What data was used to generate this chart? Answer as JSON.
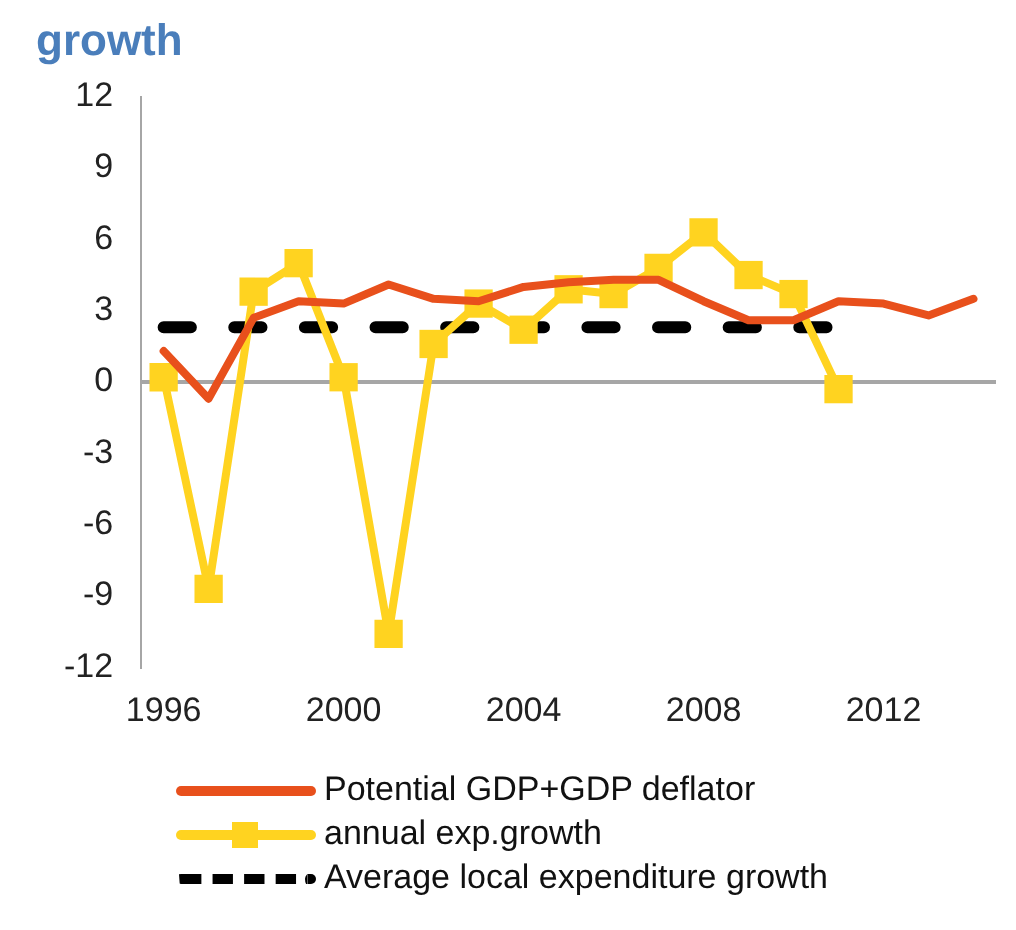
{
  "chart_data": {
    "type": "line",
    "title": "growth",
    "categories": [
      "1996",
      null,
      null,
      null,
      "2000",
      null,
      null,
      null,
      "2004",
      null,
      null,
      null,
      "2008",
      null,
      null,
      null,
      "2012",
      null,
      null
    ],
    "series": [
      {
        "name": "Potential GDP+GDP deflator",
        "color": "#e8501c",
        "values": [
          1.3,
          -0.7,
          2.7,
          3.4,
          3.3,
          4.1,
          3.5,
          3.4,
          4.0,
          4.2,
          4.3,
          4.3,
          3.4,
          2.6,
          2.6,
          3.4,
          3.3,
          2.8,
          3.5
        ]
      },
      {
        "name": "annual exp.growth",
        "color": "#ffd320",
        "marker": "square",
        "values": [
          0.2,
          -8.7,
          3.8,
          5.0,
          0.2,
          -10.6,
          1.6,
          3.3,
          2.2,
          3.9,
          3.7,
          4.8,
          6.3,
          4.5,
          3.7,
          -0.3,
          null,
          null,
          null
        ]
      },
      {
        "name": "Average local expenditure growth",
        "color": "#000000",
        "line_style": "dashed",
        "values": [
          2.3,
          2.3,
          2.3,
          2.3,
          2.3,
          2.3,
          2.3,
          2.3,
          2.3,
          2.3,
          2.3,
          2.3,
          2.3,
          2.3,
          2.3,
          2.3,
          null,
          null,
          null
        ]
      }
    ],
    "ylim": [
      -12,
      12
    ],
    "yticks": [
      -12,
      -9,
      -6,
      -3,
      0,
      3,
      6,
      9,
      12
    ],
    "legend": "bottom",
    "marker": "none",
    "line_style": "solid"
  }
}
